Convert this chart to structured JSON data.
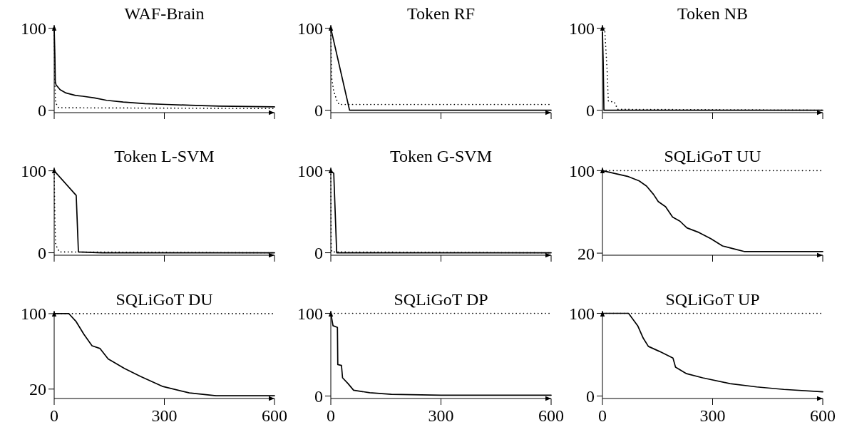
{
  "chart_data": [
    {
      "type": "line",
      "title": "WAF-Brain",
      "xlim": [
        0,
        600
      ],
      "xticks": [
        0,
        300,
        600
      ],
      "ylim": [
        -3,
        104
      ],
      "yticks": [
        0,
        100
      ],
      "tick_labels": "y",
      "series": [
        {
          "color": "#000000",
          "line_style": "solid",
          "x": [
            0,
            2,
            3,
            5,
            16,
            32,
            58,
            78,
            110,
            143,
            188,
            247,
            305,
            370,
            450,
            600
          ],
          "values": [
            100,
            64,
            35,
            31,
            25,
            21,
            18,
            17,
            15,
            12,
            10,
            8,
            7,
            6,
            5,
            4
          ]
        },
        {
          "color": "#000000",
          "line_style": "dotted",
          "x": [
            0,
            2,
            4,
            12,
            600
          ],
          "values": [
            100,
            30,
            9,
            3,
            2
          ]
        }
      ]
    },
    {
      "type": "line",
      "title": "Token RF",
      "xlim": [
        0,
        600
      ],
      "xticks": [
        0,
        300,
        600
      ],
      "ylim": [
        -3,
        104
      ],
      "yticks": [
        0,
        100
      ],
      "tick_labels": "y",
      "series": [
        {
          "color": "#000000",
          "line_style": "solid",
          "x": [
            0,
            51,
            600
          ],
          "values": [
            100,
            0,
            0
          ]
        },
        {
          "color": "#000000",
          "line_style": "dotted",
          "x": [
            0,
            2,
            8,
            18,
            23,
            600
          ],
          "values": [
            100,
            40,
            23,
            10,
            7,
            7
          ]
        }
      ]
    },
    {
      "type": "line",
      "title": "Token NB",
      "xlim": [
        0,
        600
      ],
      "xticks": [
        0,
        300,
        600
      ],
      "ylim": [
        -3,
        104
      ],
      "yticks": [
        0,
        100
      ],
      "tick_labels": "y",
      "series": [
        {
          "color": "#000000",
          "line_style": "solid",
          "x": [
            0,
            2,
            4,
            600
          ],
          "values": [
            95,
            60,
            0,
            0
          ]
        },
        {
          "color": "#000000",
          "line_style": "dotted",
          "x": [
            6,
            13,
            16,
            32,
            42,
            600
          ],
          "values": [
            100,
            46,
            11,
            10,
            1,
            0
          ]
        }
      ]
    },
    {
      "type": "line",
      "title": "Token L-SVM",
      "xlim": [
        0,
        600
      ],
      "xticks": [
        0,
        300,
        600
      ],
      "ylim": [
        -3,
        104
      ],
      "yticks": [
        0,
        100
      ],
      "tick_labels": "y",
      "series": [
        {
          "color": "#000000",
          "line_style": "solid",
          "x": [
            0,
            60,
            66,
            130,
            600
          ],
          "values": [
            100,
            70,
            1,
            0,
            0
          ]
        },
        {
          "color": "#000000",
          "line_style": "dotted",
          "x": [
            0,
            2,
            4,
            14,
            600
          ],
          "values": [
            100,
            40,
            10,
            1,
            0
          ]
        }
      ]
    },
    {
      "type": "line",
      "title": "Token G-SVM",
      "xlim": [
        0,
        600
      ],
      "xticks": [
        0,
        300,
        600
      ],
      "ylim": [
        -3,
        104
      ],
      "yticks": [
        0,
        100
      ],
      "tick_labels": "y",
      "series": [
        {
          "color": "#000000",
          "line_style": "solid",
          "x": [
            0,
            8,
            16,
            600
          ],
          "values": [
            100,
            97,
            0,
            0
          ]
        },
        {
          "color": "#000000",
          "line_style": "dotted",
          "x": [
            0,
            1,
            3,
            600
          ],
          "values": [
            100,
            5,
            1,
            0
          ]
        }
      ]
    },
    {
      "type": "line",
      "title": "SQLiGoT UU",
      "xlim": [
        0,
        600
      ],
      "xticks": [
        0,
        300,
        600
      ],
      "ylim": [
        18,
        103
      ],
      "yticks": [
        20,
        100
      ],
      "tick_labels": "y",
      "series": [
        {
          "color": "#000000",
          "line_style": "solid",
          "x": [
            0,
            36,
            68,
            100,
            120,
            139,
            152,
            172,
            191,
            211,
            230,
            263,
            295,
            327,
            360,
            386,
            600
          ],
          "values": [
            100,
            97,
            94.5,
            90,
            85,
            77,
            70,
            65,
            55,
            51,
            44.5,
            40,
            34,
            27,
            24,
            21.6,
            21.6
          ]
        },
        {
          "color": "#000000",
          "line_style": "dotted",
          "x": [
            0,
            600
          ],
          "values": [
            100,
            100
          ]
        }
      ]
    },
    {
      "type": "line",
      "title": "SQLiGoT DU",
      "xlim": [
        0,
        600
      ],
      "xticks": [
        0,
        300,
        600
      ],
      "ylim": [
        10,
        103
      ],
      "yticks": [
        20,
        100
      ],
      "series": [
        {
          "color": "#000000",
          "line_style": "solid",
          "x": [
            0,
            40,
            59,
            81,
            103,
            125,
            147,
            191,
            235,
            294,
            368,
            441,
            600
          ],
          "values": [
            100,
            100,
            92,
            78,
            66,
            63,
            52,
            42,
            33.5,
            23,
            16,
            13,
            13
          ]
        },
        {
          "color": "#000000",
          "line_style": "dotted",
          "x": [
            0,
            600
          ],
          "values": [
            100,
            100
          ]
        }
      ]
    },
    {
      "type": "line",
      "title": "SQLiGoT DP",
      "xlim": [
        0,
        600
      ],
      "xticks": [
        0,
        300,
        600
      ],
      "ylim": [
        -3,
        103
      ],
      "yticks": [
        0,
        100
      ],
      "series": [
        {
          "color": "#000000",
          "line_style": "solid",
          "x": [
            0,
            6,
            18,
            19,
            29,
            32,
            47,
            62,
            106,
            165,
            300,
            600
          ],
          "values": [
            100,
            85,
            83,
            38,
            37,
            22,
            15,
            7,
            4,
            2,
            1,
            1
          ]
        },
        {
          "color": "#000000",
          "line_style": "dotted",
          "x": [
            0,
            600
          ],
          "values": [
            100,
            100
          ]
        }
      ]
    },
    {
      "type": "line",
      "title": "SQLiGoT UP",
      "xlim": [
        0,
        600
      ],
      "xticks": [
        0,
        300,
        600
      ],
      "ylim": [
        -3,
        103
      ],
      "yticks": [
        0,
        100
      ],
      "series": [
        {
          "color": "#000000",
          "line_style": "solid",
          "x": [
            0,
            71,
            96,
            111,
            125,
            155,
            192,
            199,
            229,
            273,
            347,
            420,
            494,
            600
          ],
          "values": [
            100,
            100,
            85,
            70,
            60,
            54,
            46,
            35,
            27,
            22,
            15,
            11,
            8,
            5
          ]
        },
        {
          "color": "#000000",
          "line_style": "dotted",
          "x": [
            0,
            600
          ],
          "values": [
            100,
            100
          ]
        }
      ]
    }
  ]
}
